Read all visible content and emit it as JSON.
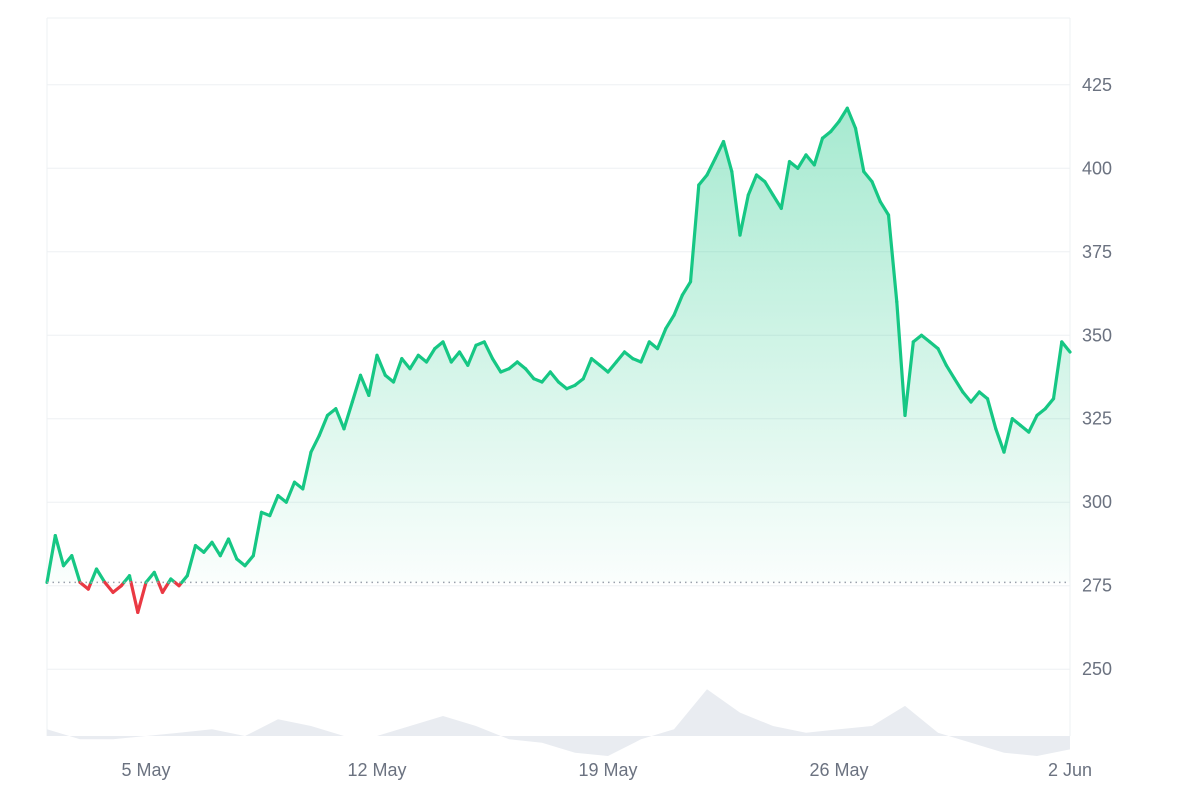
{
  "colors": {
    "up": "#16c784",
    "down": "#ea3943",
    "fill_top": "#16c784",
    "baseline": "#9aa1ac",
    "grid": "#eef0f3",
    "volume": "#e9ecf1",
    "axis_text": "#6b7280"
  },
  "chart_data": {
    "type": "area",
    "title": "",
    "xlabel": "",
    "ylabel": "",
    "grid": true,
    "y_axis_position": "right",
    "xlim": [
      "2 May",
      "2 Jun"
    ],
    "ylim": [
      230,
      445
    ],
    "y_ticks": [
      250,
      275,
      300,
      325,
      350,
      375,
      400,
      425
    ],
    "x_ticks": [
      {
        "day": 5,
        "label": "5 May"
      },
      {
        "day": 12,
        "label": "12 May"
      },
      {
        "day": 19,
        "label": "19 May"
      },
      {
        "day": 26,
        "label": "26 May"
      },
      {
        "day": 33,
        "label": "2 Jun"
      }
    ],
    "baseline": 276,
    "series": [
      {
        "kind": "price",
        "points": [
          [
            "2 May",
            276
          ],
          [
            "2 May 06:00",
            290
          ],
          [
            "2 May 12:00",
            281
          ],
          [
            "2 May 18:00",
            284
          ],
          [
            "3 May",
            276
          ],
          [
            "3 May 06:00",
            274
          ],
          [
            "3 May 12:00",
            280
          ],
          [
            "3 May 18:00",
            276
          ],
          [
            "4 May",
            273
          ],
          [
            "4 May 06:00",
            275
          ],
          [
            "4 May 12:00",
            278
          ],
          [
            "4 May 18:00",
            267
          ],
          [
            "5 May",
            276
          ],
          [
            "5 May 06:00",
            279
          ],
          [
            "5 May 12:00",
            273
          ],
          [
            "5 May 18:00",
            277
          ],
          [
            "6 May",
            275
          ],
          [
            "6 May 06:00",
            278
          ],
          [
            "6 May 12:00",
            287
          ],
          [
            "6 May 18:00",
            285
          ],
          [
            "7 May",
            288
          ],
          [
            "7 May 06:00",
            284
          ],
          [
            "7 May 12:00",
            289
          ],
          [
            "7 May 18:00",
            283
          ],
          [
            "8 May",
            281
          ],
          [
            "8 May 06:00",
            284
          ],
          [
            "8 May 12:00",
            297
          ],
          [
            "8 May 18:00",
            296
          ],
          [
            "9 May",
            302
          ],
          [
            "9 May 06:00",
            300
          ],
          [
            "9 May 12:00",
            306
          ],
          [
            "9 May 18:00",
            304
          ],
          [
            "10 May",
            315
          ],
          [
            "10 May 06:00",
            320
          ],
          [
            "10 May 12:00",
            326
          ],
          [
            "10 May 18:00",
            328
          ],
          [
            "11 May",
            322
          ],
          [
            "11 May 06:00",
            330
          ],
          [
            "11 May 12:00",
            338
          ],
          [
            "11 May 18:00",
            332
          ],
          [
            "12 May",
            344
          ],
          [
            "12 May 06:00",
            338
          ],
          [
            "12 May 12:00",
            336
          ],
          [
            "12 May 18:00",
            343
          ],
          [
            "13 May",
            340
          ],
          [
            "13 May 06:00",
            344
          ],
          [
            "13 May 12:00",
            342
          ],
          [
            "13 May 18:00",
            346
          ],
          [
            "14 May",
            348
          ],
          [
            "14 May 06:00",
            342
          ],
          [
            "14 May 12:00",
            345
          ],
          [
            "14 May 18:00",
            341
          ],
          [
            "15 May",
            347
          ],
          [
            "15 May 06:00",
            348
          ],
          [
            "15 May 12:00",
            343
          ],
          [
            "15 May 18:00",
            339
          ],
          [
            "16 May",
            340
          ],
          [
            "16 May 06:00",
            342
          ],
          [
            "16 May 12:00",
            340
          ],
          [
            "16 May 18:00",
            337
          ],
          [
            "17 May",
            336
          ],
          [
            "17 May 06:00",
            339
          ],
          [
            "17 May 12:00",
            336
          ],
          [
            "17 May 18:00",
            334
          ],
          [
            "18 May",
            335
          ],
          [
            "18 May 06:00",
            337
          ],
          [
            "18 May 12:00",
            343
          ],
          [
            "18 May 18:00",
            341
          ],
          [
            "19 May",
            339
          ],
          [
            "19 May 06:00",
            342
          ],
          [
            "19 May 12:00",
            345
          ],
          [
            "19 May 18:00",
            343
          ],
          [
            "20 May",
            342
          ],
          [
            "20 May 06:00",
            348
          ],
          [
            "20 May 12:00",
            346
          ],
          [
            "20 May 18:00",
            352
          ],
          [
            "21 May",
            356
          ],
          [
            "21 May 06:00",
            362
          ],
          [
            "21 May 12:00",
            366
          ],
          [
            "21 May 18:00",
            395
          ],
          [
            "22 May",
            398
          ],
          [
            "22 May 06:00",
            403
          ],
          [
            "22 May 12:00",
            408
          ],
          [
            "22 May 18:00",
            399
          ],
          [
            "23 May",
            380
          ],
          [
            "23 May 06:00",
            392
          ],
          [
            "23 May 12:00",
            398
          ],
          [
            "23 May 18:00",
            396
          ],
          [
            "24 May",
            392
          ],
          [
            "24 May 06:00",
            388
          ],
          [
            "24 May 12:00",
            402
          ],
          [
            "24 May 18:00",
            400
          ],
          [
            "25 May",
            404
          ],
          [
            "25 May 06:00",
            401
          ],
          [
            "25 May 12:00",
            409
          ],
          [
            "25 May 18:00",
            411
          ],
          [
            "26 May",
            414
          ],
          [
            "26 May 06:00",
            418
          ],
          [
            "26 May 12:00",
            412
          ],
          [
            "26 May 18:00",
            399
          ],
          [
            "27 May",
            396
          ],
          [
            "27 May 06:00",
            390
          ],
          [
            "27 May 12:00",
            386
          ],
          [
            "27 May 18:00",
            360
          ],
          [
            "28 May",
            326
          ],
          [
            "28 May 06:00",
            348
          ],
          [
            "28 May 12:00",
            350
          ],
          [
            "28 May 18:00",
            348
          ],
          [
            "29 May",
            346
          ],
          [
            "29 May 06:00",
            341
          ],
          [
            "29 May 12:00",
            337
          ],
          [
            "29 May 18:00",
            333
          ],
          [
            "30 May",
            330
          ],
          [
            "30 May 06:00",
            333
          ],
          [
            "30 May 12:00",
            331
          ],
          [
            "30 May 18:00",
            322
          ],
          [
            "31 May",
            315
          ],
          [
            "31 May 06:00",
            325
          ],
          [
            "31 May 12:00",
            323
          ],
          [
            "31 May 18:00",
            321
          ],
          [
            "1 Jun",
            326
          ],
          [
            "1 Jun 06:00",
            328
          ],
          [
            "1 Jun 12:00",
            331
          ],
          [
            "1 Jun 18:00",
            348
          ],
          [
            "2 Jun",
            345
          ]
        ]
      },
      {
        "kind": "volume",
        "points": [
          [
            "2 May",
            232
          ],
          [
            "3 May",
            229
          ],
          [
            "4 May",
            229
          ],
          [
            "5 May",
            230
          ],
          [
            "6 May",
            231
          ],
          [
            "7 May",
            232
          ],
          [
            "8 May",
            230
          ],
          [
            "9 May",
            235
          ],
          [
            "10 May",
            233
          ],
          [
            "11 May",
            230
          ],
          [
            "12 May",
            230
          ],
          [
            "13 May",
            233
          ],
          [
            "14 May",
            236
          ],
          [
            "15 May",
            233
          ],
          [
            "16 May",
            229
          ],
          [
            "17 May",
            228
          ],
          [
            "18 May",
            225
          ],
          [
            "19 May",
            224
          ],
          [
            "20 May",
            229
          ],
          [
            "21 May",
            232
          ],
          [
            "22 May",
            244
          ],
          [
            "23 May",
            237
          ],
          [
            "24 May",
            233
          ],
          [
            "25 May",
            231
          ],
          [
            "26 May",
            232
          ],
          [
            "27 May",
            233
          ],
          [
            "28 May",
            239
          ],
          [
            "29 May",
            231
          ],
          [
            "30 May",
            228
          ],
          [
            "31 May",
            225
          ],
          [
            "1 Jun",
            224
          ],
          [
            "2 Jun",
            226
          ]
        ]
      }
    ]
  }
}
